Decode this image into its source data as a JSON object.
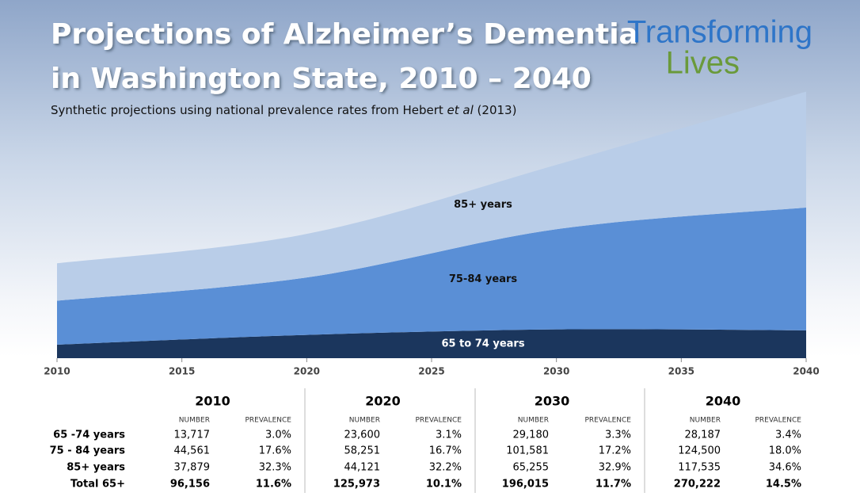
{
  "chart_data": {
    "type": "stacked-area",
    "title": [
      "Projections of Alzheimer’s Dementia",
      "in Washington State, 2010 – 2040"
    ],
    "subtitle": [
      "Synthetic projections using national prevalence rates from Hebert ",
      "et al",
      " (2013)"
    ],
    "logo": [
      "Transforming",
      "Lives"
    ],
    "x": [
      2010,
      2020,
      2030,
      2040
    ],
    "series": [
      {
        "name": "65 to 74 years",
        "color": "#1b365d",
        "values": [
          13717,
          23600,
          29180,
          28187
        ]
      },
      {
        "name": "75-84 years",
        "color": "#5a8fd6",
        "values": [
          44561,
          58251,
          101581,
          124500
        ]
      },
      {
        "name": "85+ years",
        "color": "#b9cde8",
        "values": [
          37879,
          44121,
          65255,
          117535
        ]
      }
    ],
    "xlim": [
      2010,
      2040
    ],
    "xticks": [
      2010,
      2015,
      2020,
      2025,
      2030,
      2035,
      2040
    ],
    "ylim": [
      0,
      290000
    ]
  },
  "table": {
    "groups": [
      "2010",
      "2020",
      "2030",
      "2040"
    ],
    "subheaders": [
      "NUMBER",
      "PREVALENCE"
    ],
    "rows": [
      {
        "label": "65 -74 years",
        "cells": [
          "13,717",
          "3.0%",
          "23,600",
          "3.1%",
          "29,180",
          "3.3%",
          "28,187",
          "3.4%"
        ]
      },
      {
        "label": "75 - 84 years",
        "cells": [
          "44,561",
          "17.6%",
          "58,251",
          "16.7%",
          "101,581",
          "17.2%",
          "124,500",
          "18.0%"
        ]
      },
      {
        "label": "85+ years",
        "cells": [
          "37,879",
          "32.3%",
          "44,121",
          "32.2%",
          "65,255",
          "32.9%",
          "117,535",
          "34.6%"
        ]
      },
      {
        "label": "Total 65+",
        "cells": [
          "96,156",
          "11.6%",
          "125,973",
          "10.1%",
          "196,015",
          "11.7%",
          "270,222",
          "14.5%"
        ]
      }
    ]
  }
}
